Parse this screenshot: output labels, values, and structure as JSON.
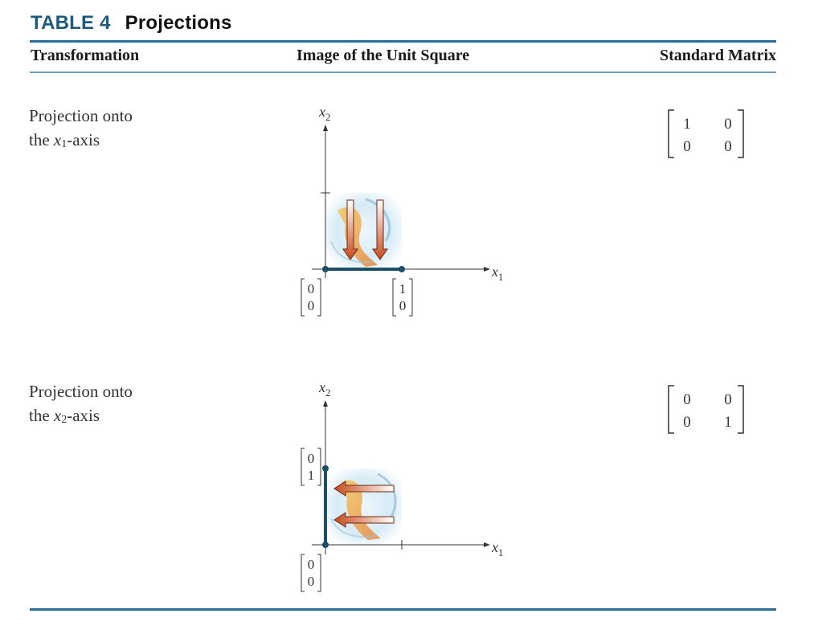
{
  "table": {
    "number": "TABLE 4",
    "title": "Projections",
    "headers": {
      "transformation": "Transformation",
      "image": "Image of the Unit Square",
      "matrix": "Standard Matrix"
    }
  },
  "rows": [
    {
      "label_line1": "Projection onto",
      "label_pre": "the ",
      "label_var": "x",
      "label_sub": "1",
      "label_post": "-axis",
      "matrix": [
        [
          "1",
          "0"
        ],
        [
          "0",
          "0"
        ]
      ],
      "vectors": [
        [
          "0",
          "0"
        ],
        [
          "1",
          "0"
        ]
      ]
    },
    {
      "label_line1": "Projection onto",
      "label_pre": "the ",
      "label_var": "x",
      "label_sub": "2",
      "label_post": "-axis",
      "matrix": [
        [
          "0",
          "0"
        ],
        [
          "0",
          "1"
        ]
      ],
      "vectors": [
        [
          "0",
          "1"
        ],
        [
          "0",
          "0"
        ]
      ]
    }
  ],
  "axes": {
    "x_var": "x",
    "x_sub": "1",
    "y_var": "x",
    "y_sub": "2"
  },
  "colors": {
    "accent": "#1c5a7e",
    "rule": "#2b6d93",
    "line": "#1e4d66",
    "arrow": "#c84a1c"
  }
}
